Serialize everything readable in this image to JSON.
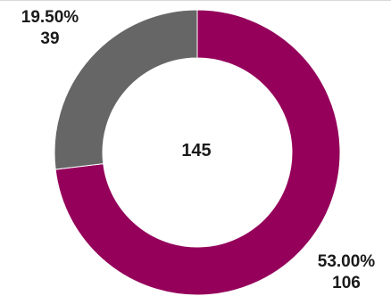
{
  "chart_data": {
    "type": "pie",
    "variant": "donut",
    "title": "",
    "center_label": "145",
    "slices": [
      {
        "name": "",
        "value": 106,
        "percent_label": "53.00%",
        "value_label": "106",
        "color": "#94005a"
      },
      {
        "name": "",
        "value": 39,
        "percent_label": "19.50%",
        "value_label": "39",
        "color": "#666666"
      }
    ],
    "legend": "none",
    "start_angle_position": "top",
    "direction": "clockwise"
  }
}
